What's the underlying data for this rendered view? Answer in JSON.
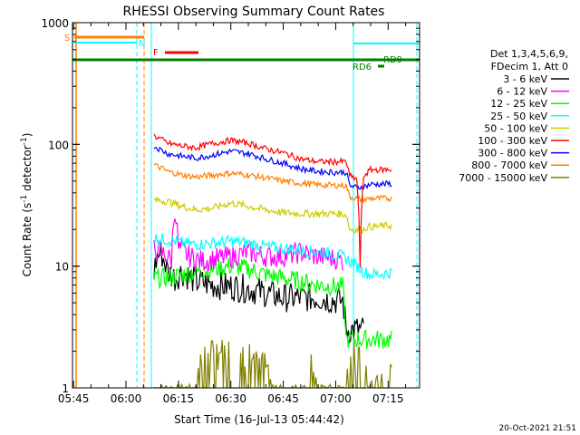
{
  "chart_data": {
    "type": "line",
    "title": "RHESSI Observing Summary Count Rates",
    "xlabel": "Start Time (16-Jul-13 05:44:42)",
    "ylabel": "Count Rate (s",
    "ylabel_sup": "-1",
    "ylabel_tail": " detector",
    "ylabel_sup2": "-1",
    "ylabel_end": ")",
    "y_scale": "log",
    "ylim": [
      1,
      1000
    ],
    "xlim": [
      "05:44:42",
      "07:24:00"
    ],
    "x_tick_labels": [
      "05:45",
      "06:00",
      "06:15",
      "06:30",
      "06:45",
      "07:00",
      "07:15"
    ],
    "y_tick_labels": [
      "1",
      "10",
      "100",
      "1000"
    ],
    "grid": false,
    "legend_placement": "right",
    "legend_header": [
      "Det 1,3,4,5,6,9,",
      "FDecim 1, Att 0"
    ],
    "series": [
      {
        "name": "3 - 6 keV",
        "color": "#000000",
        "points": [
          [
            "06:08",
            9
          ],
          [
            "06:09",
            12
          ],
          [
            "06:10",
            13
          ],
          [
            "06:11",
            11
          ],
          [
            "06:12",
            9
          ],
          [
            "06:14",
            8
          ],
          [
            "06:16",
            9
          ],
          [
            "06:20",
            7.5
          ],
          [
            "06:25",
            7
          ],
          [
            "06:30",
            6.8
          ],
          [
            "06:35",
            6.5
          ],
          [
            "06:40",
            6
          ],
          [
            "06:45",
            5.5
          ],
          [
            "06:50",
            5.5
          ],
          [
            "06:55",
            5.5
          ],
          [
            "07:00",
            5.2
          ],
          [
            "07:02",
            5.2
          ],
          [
            "07:03",
            3
          ],
          [
            "07:08",
            3
          ]
        ]
      },
      {
        "name": "6 - 12 keV",
        "color": "#ff00ff",
        "points": [
          [
            "06:08",
            14
          ],
          [
            "06:10",
            13
          ],
          [
            "06:12",
            12
          ],
          [
            "06:13",
            11
          ],
          [
            "06:14",
            30
          ],
          [
            "06:15",
            14
          ],
          [
            "06:18",
            12
          ],
          [
            "06:22",
            11
          ],
          [
            "06:26",
            11.5
          ],
          [
            "06:30",
            12
          ],
          [
            "06:35",
            13
          ],
          [
            "06:40",
            12
          ],
          [
            "06:45",
            12
          ],
          [
            "06:50",
            13
          ],
          [
            "06:55",
            12
          ],
          [
            "07:00",
            11.5
          ],
          [
            "07:02",
            11
          ]
        ]
      },
      {
        "name": "12 - 25 keV",
        "color": "#00ff00",
        "points": [
          [
            "06:08",
            8
          ],
          [
            "06:12",
            8
          ],
          [
            "06:16",
            8.5
          ],
          [
            "06:20",
            9
          ],
          [
            "06:25",
            9.5
          ],
          [
            "06:30",
            10
          ],
          [
            "06:35",
            9.5
          ],
          [
            "06:40",
            8.5
          ],
          [
            "06:45",
            8
          ],
          [
            "06:50",
            7.5
          ],
          [
            "06:55",
            7
          ],
          [
            "07:00",
            6.8
          ],
          [
            "07:02",
            6.8
          ],
          [
            "07:03",
            2.5
          ],
          [
            "07:16",
            2.5
          ]
        ]
      },
      {
        "name": "25 - 50 keV",
        "color": "#00ffff",
        "points": [
          [
            "06:08",
            17
          ],
          [
            "06:12",
            16.5
          ],
          [
            "06:16",
            15.5
          ],
          [
            "06:20",
            15
          ],
          [
            "06:25",
            15.5
          ],
          [
            "06:30",
            16
          ],
          [
            "06:35",
            15.5
          ],
          [
            "06:40",
            14.5
          ],
          [
            "06:45",
            14
          ],
          [
            "06:50",
            13.5
          ],
          [
            "06:55",
            13
          ],
          [
            "07:00",
            12.5
          ],
          [
            "07:02",
            12
          ],
          [
            "07:08",
            9
          ],
          [
            "07:10",
            8.5
          ],
          [
            "07:16",
            8.8
          ]
        ]
      },
      {
        "name": "50 - 100 keV",
        "color": "#cccc00",
        "points": [
          [
            "06:08",
            35
          ],
          [
            "06:12",
            34
          ],
          [
            "06:16",
            31
          ],
          [
            "06:20",
            29
          ],
          [
            "06:25",
            30
          ],
          [
            "06:30",
            33
          ],
          [
            "06:35",
            31
          ],
          [
            "06:40",
            29
          ],
          [
            "06:45",
            27.5
          ],
          [
            "06:50",
            27
          ],
          [
            "06:55",
            27
          ],
          [
            "07:00",
            27
          ],
          [
            "07:03",
            26.5
          ],
          [
            "07:04",
            20
          ],
          [
            "07:08",
            20
          ],
          [
            "07:09",
            21
          ],
          [
            "07:16",
            21.5
          ]
        ]
      },
      {
        "name": "100 - 300 keV",
        "color": "#ff0000",
        "points": [
          [
            "06:08",
            118
          ],
          [
            "06:10",
            110
          ],
          [
            "06:12",
            102
          ],
          [
            "06:16",
            97
          ],
          [
            "06:20",
            94
          ],
          [
            "06:25",
            102
          ],
          [
            "06:30",
            108
          ],
          [
            "06:35",
            102
          ],
          [
            "06:40",
            92
          ],
          [
            "06:45",
            85
          ],
          [
            "06:50",
            76
          ],
          [
            "06:55",
            72
          ],
          [
            "07:00",
            72
          ],
          [
            "07:03",
            72
          ],
          [
            "07:04",
            55
          ],
          [
            "07:06",
            52
          ],
          [
            "07:07",
            10
          ],
          [
            "07:08",
            55
          ],
          [
            "07:10",
            62
          ],
          [
            "07:16",
            62
          ]
        ]
      },
      {
        "name": "300 - 800 keV",
        "color": "#0000ff",
        "points": [
          [
            "06:08",
            97
          ],
          [
            "06:10",
            90
          ],
          [
            "06:12",
            84
          ],
          [
            "06:16",
            80
          ],
          [
            "06:20",
            77
          ],
          [
            "06:25",
            82
          ],
          [
            "06:30",
            88
          ],
          [
            "06:35",
            84
          ],
          [
            "06:40",
            76
          ],
          [
            "06:45",
            70
          ],
          [
            "06:50",
            63
          ],
          [
            "06:55",
            60
          ],
          [
            "07:00",
            59
          ],
          [
            "07:03",
            59
          ],
          [
            "07:04",
            46
          ],
          [
            "07:06",
            44
          ],
          [
            "07:08",
            45
          ],
          [
            "07:10",
            47
          ],
          [
            "07:16",
            47.5
          ]
        ]
      },
      {
        "name": "800 - 7000 keV",
        "color": "#ff8000",
        "points": [
          [
            "06:08",
            68
          ],
          [
            "06:10",
            64
          ],
          [
            "06:12",
            60
          ],
          [
            "06:16",
            56
          ],
          [
            "06:20",
            54
          ],
          [
            "06:25",
            56
          ],
          [
            "06:30",
            58
          ],
          [
            "06:35",
            56
          ],
          [
            "06:40",
            53
          ],
          [
            "06:45",
            50
          ],
          [
            "06:50",
            48
          ],
          [
            "06:55",
            46.5
          ],
          [
            "07:00",
            46
          ],
          [
            "07:03",
            46
          ],
          [
            "07:04",
            37
          ],
          [
            "07:08",
            35
          ],
          [
            "07:10",
            36
          ],
          [
            "07:16",
            36
          ]
        ]
      },
      {
        "name": "7000 - 15000 keV",
        "color": "#808000",
        "points": [
          [
            "06:08",
            1
          ],
          [
            "06:20",
            1
          ],
          [
            "06:21",
            2
          ],
          [
            "06:35",
            2
          ],
          [
            "06:36",
            1.6
          ],
          [
            "06:40",
            1.8
          ],
          [
            "06:42",
            1
          ],
          [
            "06:52",
            1
          ],
          [
            "06:53",
            1.6
          ],
          [
            "06:55",
            1
          ],
          [
            "07:03",
            1
          ],
          [
            "07:04",
            2
          ],
          [
            "07:08",
            2
          ],
          [
            "07:09",
            1
          ],
          [
            "07:16",
            1.5
          ]
        ]
      }
    ],
    "annotations": [
      {
        "label": "S",
        "color": "#ff8000"
      },
      {
        "label": "N",
        "color": "#00ffff"
      },
      {
        "label": "F",
        "color": "#ff0000"
      },
      {
        "label": "RD6",
        "color": "#008000"
      },
      {
        "label": "RD9",
        "color": "#008000"
      }
    ],
    "timestamp": "20-Oct-2021 21:51"
  }
}
